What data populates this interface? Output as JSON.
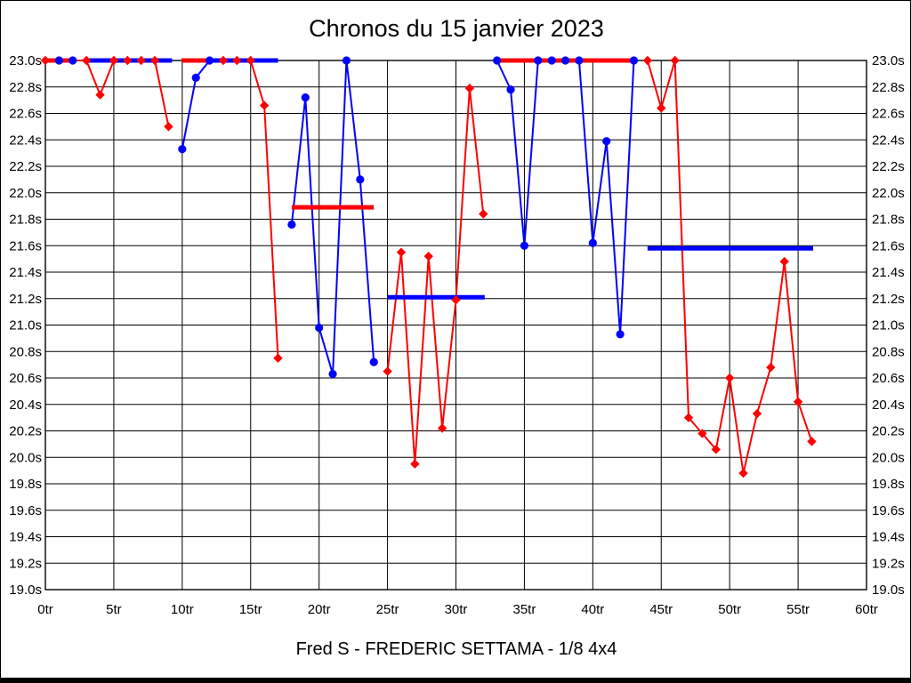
{
  "chart_data": {
    "type": "line",
    "title": "Chronos du 15 janvier 2023",
    "caption": "Fred S - FREDERIC SETTAMA - 1/8 4x4",
    "x_unit": "tr",
    "y_unit": "s",
    "xlim": [
      0,
      60
    ],
    "ylim": [
      19.0,
      23.0
    ],
    "x_tick_step": 5,
    "y_tick_step": 0.2,
    "x_ticks": [
      "0tr",
      "5tr",
      "10tr",
      "15tr",
      "20tr",
      "25tr",
      "30tr",
      "35tr",
      "40tr",
      "45tr",
      "50tr",
      "55tr",
      "60tr"
    ],
    "y_ticks": [
      "23.0s",
      "22.8s",
      "22.6s",
      "22.4s",
      "22.2s",
      "22.0s",
      "21.8s",
      "21.6s",
      "21.4s",
      "21.2s",
      "21.0s",
      "20.8s",
      "20.6s",
      "20.4s",
      "20.2s",
      "20.0s",
      "19.8s",
      "19.6s",
      "19.4s",
      "19.2s",
      "19.0s"
    ],
    "grid": true,
    "colors": {
      "red": "#ff0000",
      "blue": "#0000ff",
      "grid": "#000000",
      "background": "#ffffff"
    },
    "series": [
      {
        "name": "driver_red",
        "color": "red",
        "marker": "diamond",
        "stints": [
          [
            [
              0,
              23.0
            ],
            [
              3,
              23.0
            ],
            [
              4,
              22.74
            ],
            [
              5,
              23.0
            ],
            [
              6,
              23.0
            ],
            [
              7,
              23.0
            ],
            [
              8,
              23.0
            ],
            [
              9,
              22.5
            ]
          ],
          [
            [
              13,
              23.0
            ],
            [
              14,
              23.0
            ],
            [
              15,
              23.0
            ],
            [
              16,
              22.66
            ],
            [
              17,
              20.75
            ]
          ],
          [
            [
              25,
              20.65
            ],
            [
              26,
              21.55
            ],
            [
              27,
              19.95
            ],
            [
              28,
              21.52
            ],
            [
              29,
              20.22
            ],
            [
              30,
              21.19
            ],
            [
              31,
              22.79
            ],
            [
              32,
              21.84
            ]
          ],
          [
            [
              44,
              23.0
            ],
            [
              45,
              22.64
            ],
            [
              46,
              23.0
            ],
            [
              47,
              20.3
            ],
            [
              48,
              20.18
            ],
            [
              49,
              20.06
            ],
            [
              50,
              20.6
            ],
            [
              51,
              19.88
            ],
            [
              52,
              20.33
            ],
            [
              53,
              20.68
            ],
            [
              54,
              21.48
            ],
            [
              55,
              20.42
            ],
            [
              56,
              20.12
            ]
          ]
        ]
      },
      {
        "name": "driver_blue",
        "color": "blue",
        "marker": "circle",
        "stints": [
          [
            [
              1,
              23.0
            ],
            [
              2,
              23.0
            ]
          ],
          [
            [
              10,
              22.33
            ],
            [
              11,
              22.87
            ],
            [
              12,
              23.0
            ]
          ],
          [
            [
              18,
              21.76
            ],
            [
              19,
              22.72
            ],
            [
              20,
              20.98
            ],
            [
              21,
              20.63
            ],
            [
              22,
              23.0
            ],
            [
              23,
              22.1
            ],
            [
              24,
              20.72
            ]
          ],
          [
            [
              33,
              23.0
            ],
            [
              34,
              22.78
            ],
            [
              35,
              21.6
            ],
            [
              36,
              23.0
            ],
            [
              37,
              23.0
            ],
            [
              38,
              23.0
            ],
            [
              39,
              23.0
            ],
            [
              40,
              21.62
            ],
            [
              41,
              22.39
            ],
            [
              42,
              20.93
            ],
            [
              43,
              23.0
            ]
          ]
        ]
      }
    ],
    "stint_averages": [
      {
        "color": "red",
        "x1": 0.0,
        "x2": 2.1,
        "value": 23.0
      },
      {
        "color": "blue",
        "x1": 2.9,
        "x2": 9.25,
        "value": 23.0
      },
      {
        "color": "red",
        "x1": 9.95,
        "x2": 12.0,
        "value": 23.0
      },
      {
        "color": "blue",
        "x1": 11.9,
        "x2": 17.0,
        "value": 23.0
      },
      {
        "color": "red",
        "x1": 18.0,
        "x2": 24.0,
        "value": 21.89
      },
      {
        "color": "blue",
        "x1": 25.0,
        "x2": 32.1,
        "value": 21.21
      },
      {
        "color": "red",
        "x1": 32.95,
        "x2": 43.25,
        "value": 23.0
      },
      {
        "color": "blue",
        "x1": 44.0,
        "x2": 56.1,
        "value": 21.58
      }
    ]
  }
}
